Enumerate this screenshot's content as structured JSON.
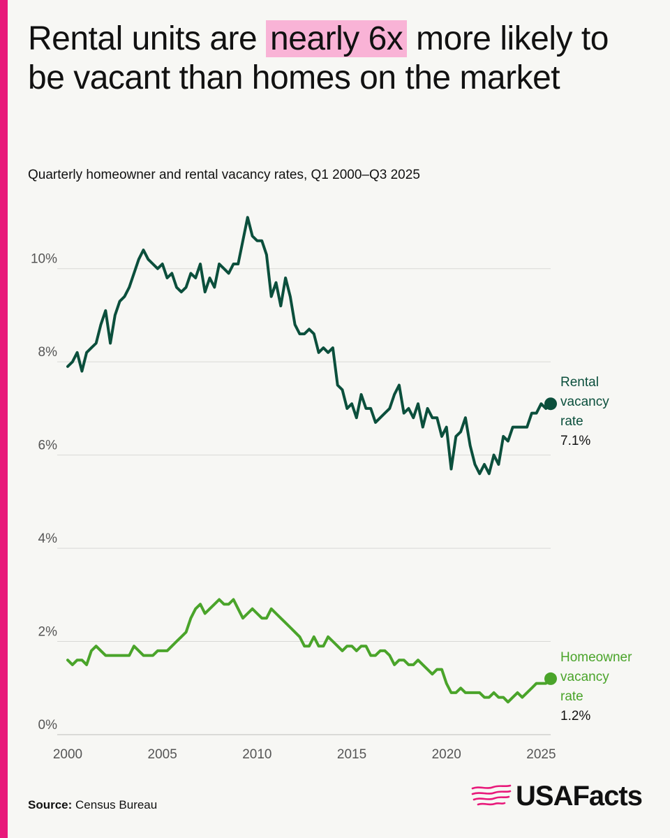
{
  "colors": {
    "accent": "#e8197a",
    "highlight": "#f9b3d6",
    "rental": "#0b4f3c",
    "homeowner": "#4aa42a",
    "grid": "#d9d9d6",
    "text": "#111111"
  },
  "title": {
    "before": "Rental units are",
    "highlight": "nearly 6x",
    "after": "more likely to be vacant than homes on the market"
  },
  "subtitle": "Quarterly homeowner and rental vacancy rates, Q1 2000–Q3 2025",
  "source": {
    "label": "Source:",
    "text": "Census Bureau"
  },
  "logo": {
    "text": "USAFacts",
    "icon": "us-map-lines-icon"
  },
  "chart_data": {
    "type": "line",
    "x_unit": "year",
    "xlim": [
      2000,
      2025.5
    ],
    "ylim": [
      0,
      11.5
    ],
    "x_ticks": [
      2000,
      2005,
      2010,
      2015,
      2020,
      2025
    ],
    "x_tick_labels": [
      "2000",
      "2005",
      "2010",
      "2015",
      "2020",
      "2025"
    ],
    "y_ticks": [
      0,
      2,
      4,
      6,
      8,
      10
    ],
    "y_tick_labels": [
      "0%",
      "2%",
      "4%",
      "6%",
      "8%",
      "10%"
    ],
    "grid": "horizontal",
    "legend": "direct-labels-right",
    "series": [
      {
        "name": "Rental vacancy rate",
        "end_label_lines": [
          "Rental",
          "vacancy",
          "rate"
        ],
        "end_value_label": "7.1%",
        "x": [
          2000.0,
          2000.25,
          2000.5,
          2000.75,
          2001.0,
          2001.25,
          2001.5,
          2001.75,
          2002.0,
          2002.25,
          2002.5,
          2002.75,
          2003.0,
          2003.25,
          2003.5,
          2003.75,
          2004.0,
          2004.25,
          2004.5,
          2004.75,
          2005.0,
          2005.25,
          2005.5,
          2005.75,
          2006.0,
          2006.25,
          2006.5,
          2006.75,
          2007.0,
          2007.25,
          2007.5,
          2007.75,
          2008.0,
          2008.25,
          2008.5,
          2008.75,
          2009.0,
          2009.25,
          2009.5,
          2009.75,
          2010.0,
          2010.25,
          2010.5,
          2010.75,
          2011.0,
          2011.25,
          2011.5,
          2011.75,
          2012.0,
          2012.25,
          2012.5,
          2012.75,
          2013.0,
          2013.25,
          2013.5,
          2013.75,
          2014.0,
          2014.25,
          2014.5,
          2014.75,
          2015.0,
          2015.25,
          2015.5,
          2015.75,
          2016.0,
          2016.25,
          2016.5,
          2016.75,
          2017.0,
          2017.25,
          2017.5,
          2017.75,
          2018.0,
          2018.25,
          2018.5,
          2018.75,
          2019.0,
          2019.25,
          2019.5,
          2019.75,
          2020.0,
          2020.25,
          2020.5,
          2020.75,
          2021.0,
          2021.25,
          2021.5,
          2021.75,
          2022.0,
          2022.25,
          2022.5,
          2022.75,
          2023.0,
          2023.25,
          2023.5,
          2023.75,
          2024.0,
          2024.25,
          2024.5,
          2024.75,
          2025.0,
          2025.25,
          2025.5
        ],
        "y": [
          7.9,
          8.0,
          8.2,
          7.8,
          8.2,
          8.3,
          8.4,
          8.8,
          9.1,
          8.4,
          9.0,
          9.3,
          9.4,
          9.6,
          9.9,
          10.2,
          10.4,
          10.2,
          10.1,
          10.0,
          10.1,
          9.8,
          9.9,
          9.6,
          9.5,
          9.6,
          9.9,
          9.8,
          10.1,
          9.5,
          9.8,
          9.6,
          10.1,
          10.0,
          9.9,
          10.1,
          10.1,
          10.6,
          11.1,
          10.7,
          10.6,
          10.6,
          10.3,
          9.4,
          9.7,
          9.2,
          9.8,
          9.4,
          8.8,
          8.6,
          8.6,
          8.7,
          8.6,
          8.2,
          8.3,
          8.2,
          8.3,
          7.5,
          7.4,
          7.0,
          7.1,
          6.8,
          7.3,
          7.0,
          7.0,
          6.7,
          6.8,
          6.9,
          7.0,
          7.3,
          7.5,
          6.9,
          7.0,
          6.8,
          7.1,
          6.6,
          7.0,
          6.8,
          6.8,
          6.4,
          6.6,
          5.7,
          6.4,
          6.5,
          6.8,
          6.2,
          5.8,
          5.6,
          5.8,
          5.6,
          6.0,
          5.8,
          6.4,
          6.3,
          6.6,
          6.6,
          6.6,
          6.6,
          6.9,
          6.9,
          7.1,
          7.0,
          7.1
        ]
      },
      {
        "name": "Homeowner vacancy rate",
        "end_label_lines": [
          "Homeowner",
          "vacancy",
          "rate"
        ],
        "end_value_label": "1.2%",
        "x": [
          2000.0,
          2000.25,
          2000.5,
          2000.75,
          2001.0,
          2001.25,
          2001.5,
          2001.75,
          2002.0,
          2002.25,
          2002.5,
          2002.75,
          2003.0,
          2003.25,
          2003.5,
          2003.75,
          2004.0,
          2004.25,
          2004.5,
          2004.75,
          2005.0,
          2005.25,
          2005.5,
          2005.75,
          2006.0,
          2006.25,
          2006.5,
          2006.75,
          2007.0,
          2007.25,
          2007.5,
          2007.75,
          2008.0,
          2008.25,
          2008.5,
          2008.75,
          2009.0,
          2009.25,
          2009.5,
          2009.75,
          2010.0,
          2010.25,
          2010.5,
          2010.75,
          2011.0,
          2011.25,
          2011.5,
          2011.75,
          2012.0,
          2012.25,
          2012.5,
          2012.75,
          2013.0,
          2013.25,
          2013.5,
          2013.75,
          2014.0,
          2014.25,
          2014.5,
          2014.75,
          2015.0,
          2015.25,
          2015.5,
          2015.75,
          2016.0,
          2016.25,
          2016.5,
          2016.75,
          2017.0,
          2017.25,
          2017.5,
          2017.75,
          2018.0,
          2018.25,
          2018.5,
          2018.75,
          2019.0,
          2019.25,
          2019.5,
          2019.75,
          2020.0,
          2020.25,
          2020.5,
          2020.75,
          2021.0,
          2021.25,
          2021.5,
          2021.75,
          2022.0,
          2022.25,
          2022.5,
          2022.75,
          2023.0,
          2023.25,
          2023.5,
          2023.75,
          2024.0,
          2024.25,
          2024.5,
          2024.75,
          2025.0,
          2025.25,
          2025.5
        ],
        "y": [
          1.6,
          1.5,
          1.6,
          1.6,
          1.5,
          1.8,
          1.9,
          1.8,
          1.7,
          1.7,
          1.7,
          1.7,
          1.7,
          1.7,
          1.9,
          1.8,
          1.7,
          1.7,
          1.7,
          1.8,
          1.8,
          1.8,
          1.9,
          2.0,
          2.1,
          2.2,
          2.5,
          2.7,
          2.8,
          2.6,
          2.7,
          2.8,
          2.9,
          2.8,
          2.8,
          2.9,
          2.7,
          2.5,
          2.6,
          2.7,
          2.6,
          2.5,
          2.5,
          2.7,
          2.6,
          2.5,
          2.4,
          2.3,
          2.2,
          2.1,
          1.9,
          1.9,
          2.1,
          1.9,
          1.9,
          2.1,
          2.0,
          1.9,
          1.8,
          1.9,
          1.9,
          1.8,
          1.9,
          1.9,
          1.7,
          1.7,
          1.8,
          1.8,
          1.7,
          1.5,
          1.6,
          1.6,
          1.5,
          1.5,
          1.6,
          1.5,
          1.4,
          1.3,
          1.4,
          1.4,
          1.1,
          0.9,
          0.9,
          1.0,
          0.9,
          0.9,
          0.9,
          0.9,
          0.8,
          0.8,
          0.9,
          0.8,
          0.8,
          0.7,
          0.8,
          0.9,
          0.8,
          0.9,
          1.0,
          1.1,
          1.1,
          1.1,
          1.2
        ]
      }
    ]
  }
}
